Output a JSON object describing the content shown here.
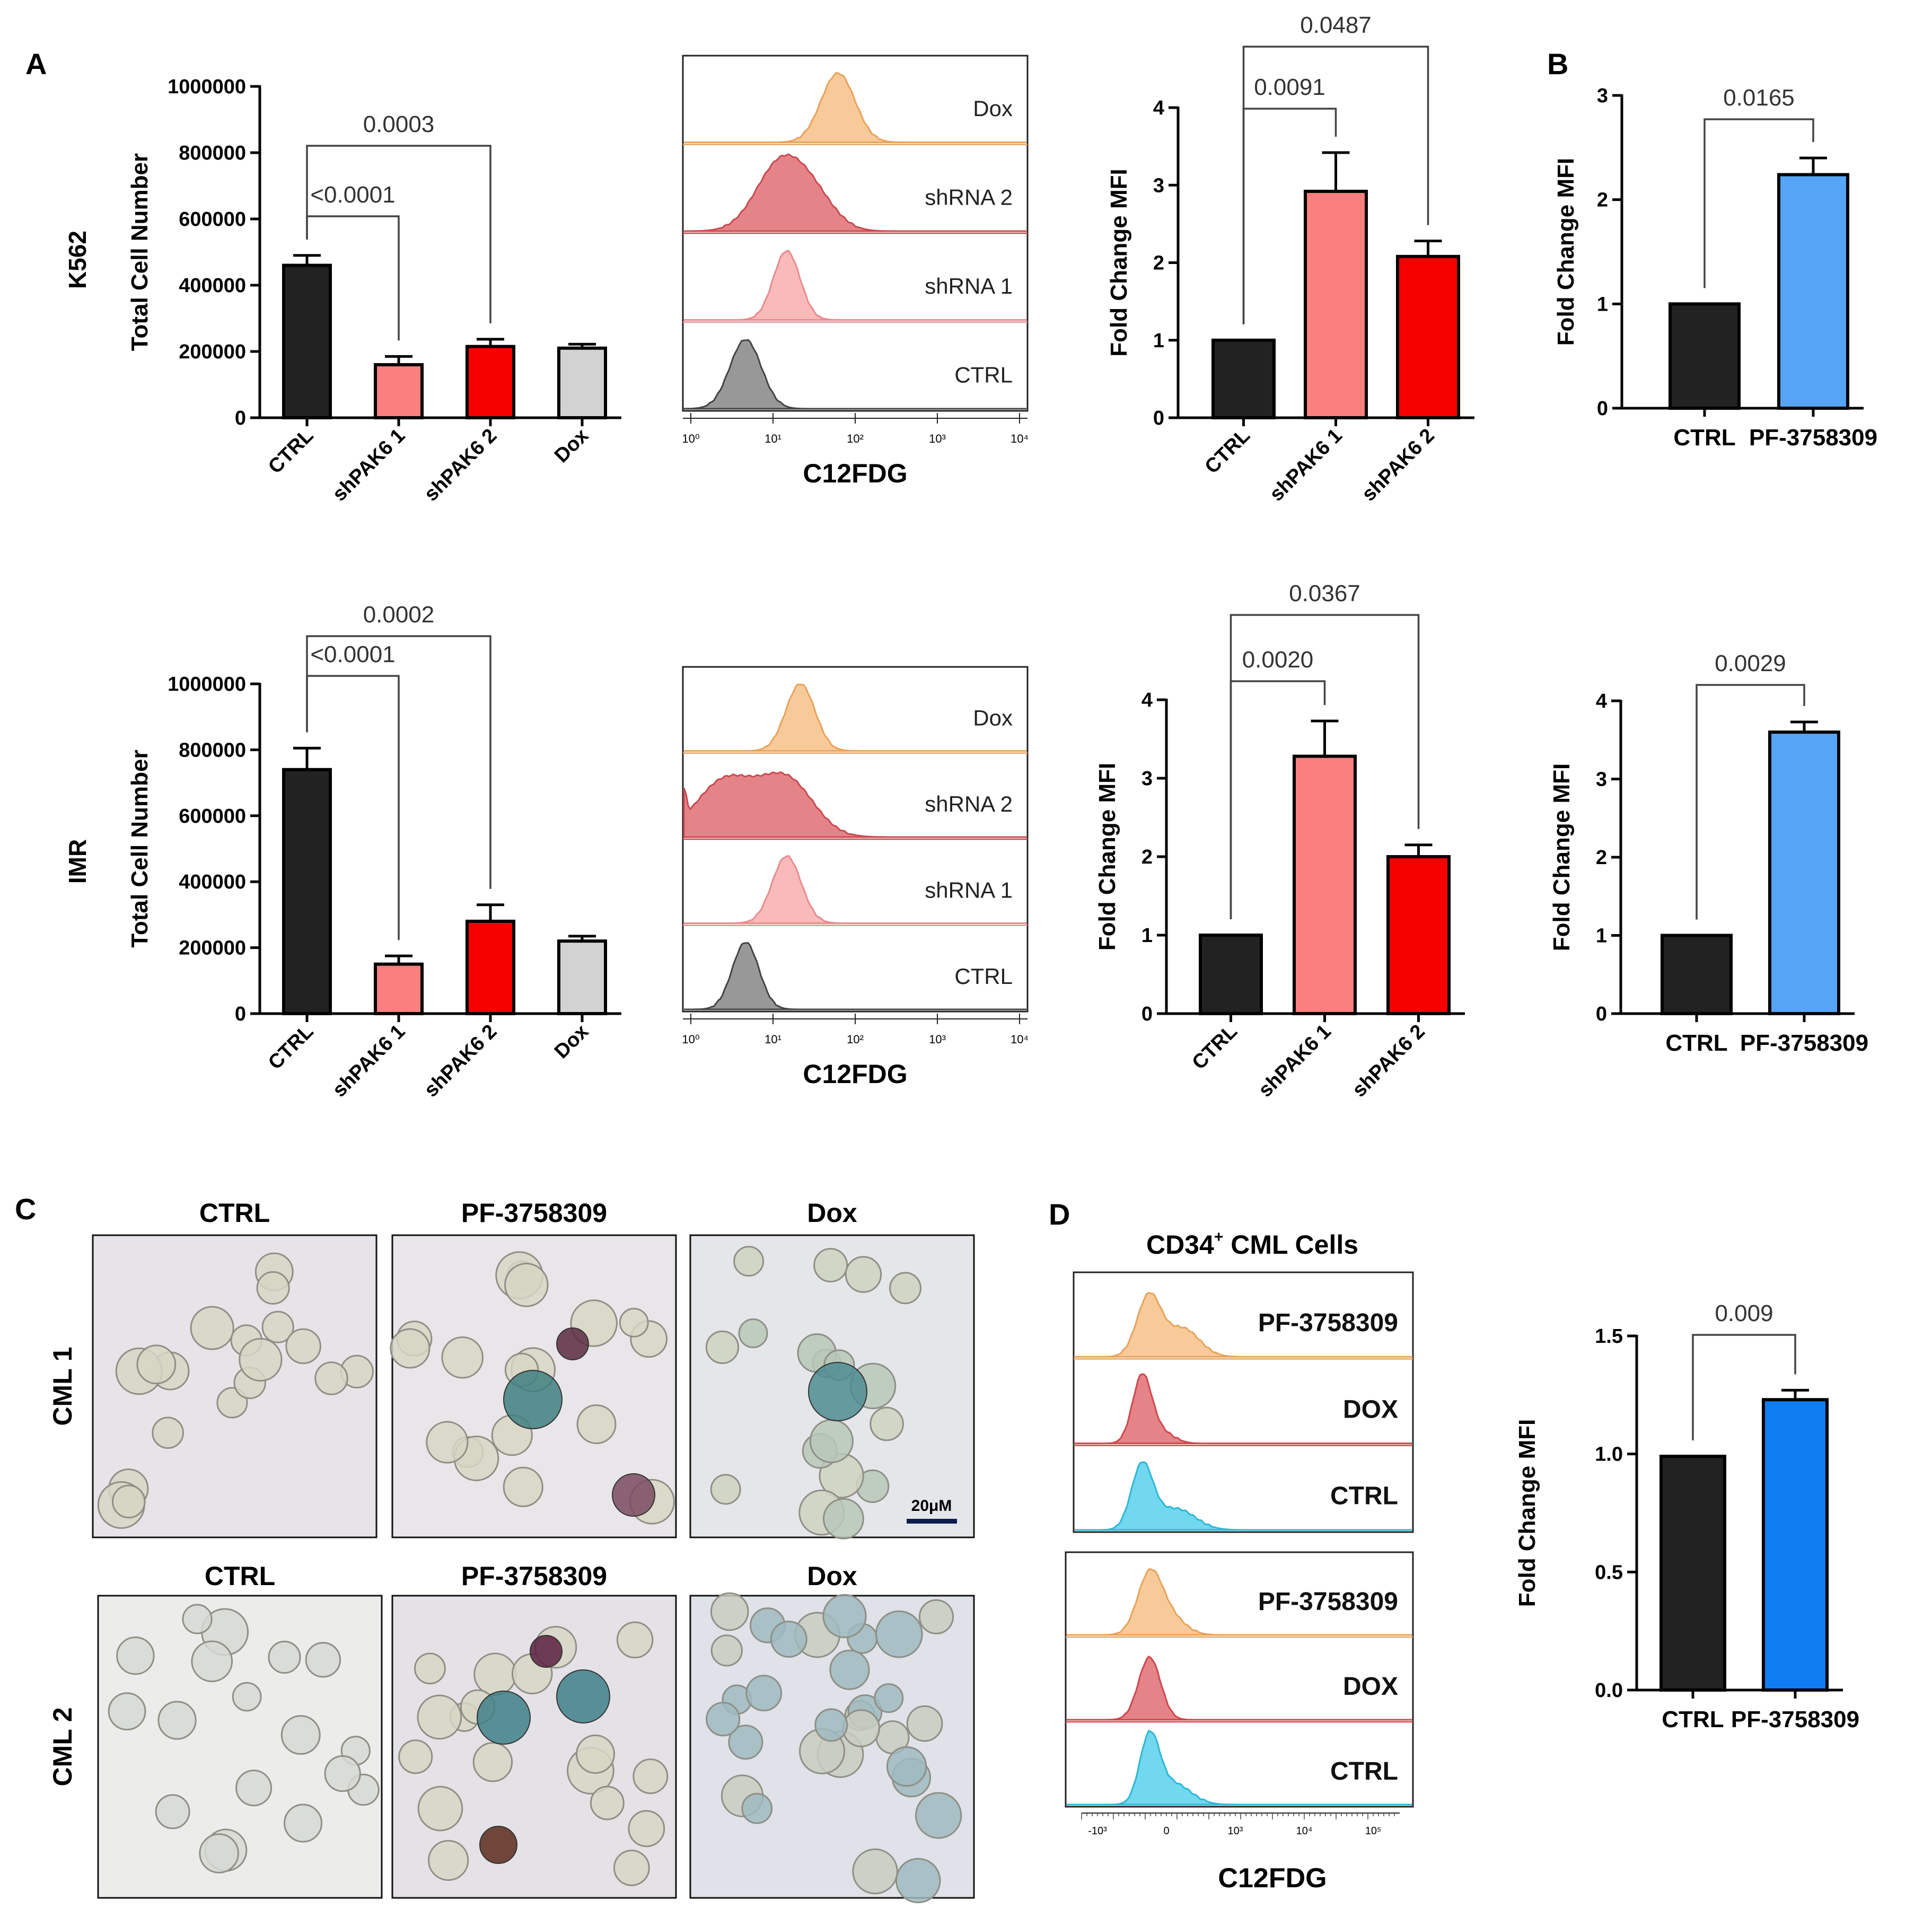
{
  "panel_labels": {
    "a": "A",
    "b": "B",
    "c": "C",
    "d": "D"
  },
  "row_labels": {
    "k562": "K562",
    "imr": "IMR"
  },
  "colors": {
    "black": "#222222",
    "pink": "#fa7f7f",
    "red": "#f70000",
    "grey": "#d2d2d2",
    "blue": "#56a4f5",
    "blue_bright": "#0f7cf2",
    "orange_hist": "#f8c48e",
    "red_hist": "#e2777b",
    "pink_hist": "#f8b2b3",
    "grey_hist": "#8d8d8d",
    "cyan_hist": "#62d4ee"
  },
  "histograms": [
    {
      "xlabel": "C12FDG",
      "tick_labels": [
        "10⁰",
        "10¹",
        "10²",
        "10³",
        "10⁴"
      ],
      "rows": [
        "Dox",
        "shRNA 2",
        "shRNA 1",
        "CTRL"
      ]
    },
    {
      "xlabel": "C12FDG",
      "tick_labels": [
        "10⁰",
        "10¹",
        "10²",
        "10³",
        "10⁴"
      ],
      "rows": [
        "Dox",
        "shRNA 2",
        "shRNA 1",
        "CTRL"
      ]
    },
    {
      "title_main": "CD34",
      "title_sup": "+",
      "title_rest": " CML Cells",
      "xlabel": "C12FDG",
      "top_rows": [
        "PF-3758309",
        "DOX",
        "CTRL"
      ],
      "bottom_rows": [
        "PF-3758309",
        "DOX",
        "CTRL"
      ],
      "tick_labels": [
        "-10³",
        "0",
        "10³",
        "10⁴",
        "10⁵"
      ]
    }
  ],
  "micrographs": {
    "col_titles_top": [
      "CTRL",
      "PF-3758309",
      "Dox"
    ],
    "col_titles_bottom": [
      "CTRL",
      "PF-3758309",
      "Dox"
    ],
    "row_labels": [
      "CML 1",
      "CML 2"
    ],
    "scale_bar": "20μM"
  },
  "chart_data": [
    {
      "id": "k562_count",
      "type": "bar",
      "categories": [
        "CTRL",
        "shPAK6 1",
        "shPAK6 2",
        "Dox"
      ],
      "values": [
        460000,
        160000,
        215000,
        210000
      ],
      "errors": [
        30000,
        25000,
        22000,
        12000
      ],
      "ylabel": "Total Cell Number",
      "ylim": [
        0,
        1000000
      ],
      "yticks": [
        "0",
        "200000",
        "400000",
        "600000",
        "800000",
        "1000000"
      ],
      "yticks_num": [
        0,
        200000,
        400000,
        600000,
        800000,
        1000000
      ],
      "bar_colors": [
        "black",
        "pink",
        "red",
        "grey"
      ],
      "brackets": [
        {
          "from": 0,
          "to": 1,
          "label": "<0.0001"
        },
        {
          "from": 0,
          "to": 2,
          "label": "0.0003"
        }
      ]
    },
    {
      "id": "k562_mfi",
      "type": "bar",
      "categories": [
        "CTRL",
        "shPAK6 1",
        "shPAK6 2"
      ],
      "values": [
        1.0,
        2.92,
        2.08
      ],
      "errors": [
        0,
        0.5,
        0.2
      ],
      "ylabel": "Fold Change MFI",
      "ylim": [
        0,
        4
      ],
      "yticks": [
        "0",
        "1",
        "2",
        "3",
        "4"
      ],
      "yticks_num": [
        0,
        1,
        2,
        3,
        4
      ],
      "bar_colors": [
        "black",
        "pink",
        "red"
      ],
      "brackets": [
        {
          "from": 0,
          "to": 1,
          "label": "0.0091"
        },
        {
          "from": 0,
          "to": 2,
          "label": "0.0487"
        }
      ]
    },
    {
      "id": "k562_pf",
      "type": "bar",
      "categories": [
        "CTRL",
        "PF-3758309"
      ],
      "values": [
        1.0,
        2.24
      ],
      "errors": [
        0,
        0.16
      ],
      "ylabel": "Fold Change MFI",
      "ylim": [
        0,
        3
      ],
      "yticks": [
        "0",
        "1",
        "2",
        "3"
      ],
      "yticks_num": [
        0,
        1,
        2,
        3
      ],
      "bar_colors": [
        "black",
        "blue"
      ],
      "brackets": [
        {
          "from": 0,
          "to": 1,
          "label": "0.0165"
        }
      ]
    },
    {
      "id": "imr_count",
      "type": "bar",
      "categories": [
        "CTRL",
        "shPAK6 1",
        "shPAK6 2",
        "Dox"
      ],
      "values": [
        740000,
        150000,
        280000,
        220000
      ],
      "errors": [
        65000,
        25000,
        50000,
        15000
      ],
      "ylabel": "Total Cell Number",
      "ylim": [
        0,
        1000000
      ],
      "yticks": [
        "0",
        "200000",
        "400000",
        "600000",
        "800000",
        "1000000"
      ],
      "yticks_num": [
        0,
        200000,
        400000,
        600000,
        800000,
        1000000
      ],
      "bar_colors": [
        "black",
        "pink",
        "red",
        "grey"
      ],
      "brackets": [
        {
          "from": 0,
          "to": 1,
          "label": "<0.0001"
        },
        {
          "from": 0,
          "to": 2,
          "label": "0.0002"
        }
      ]
    },
    {
      "id": "imr_mfi",
      "type": "bar",
      "categories": [
        "CTRL",
        "shPAK6 1",
        "shPAK6 2"
      ],
      "values": [
        1.0,
        3.28,
        2.0
      ],
      "errors": [
        0,
        0.45,
        0.15
      ],
      "ylabel": "Fold Change MFI",
      "ylim": [
        0,
        4
      ],
      "yticks": [
        "0",
        "1",
        "2",
        "3",
        "4"
      ],
      "yticks_num": [
        0,
        1,
        2,
        3,
        4
      ],
      "bar_colors": [
        "black",
        "pink",
        "red"
      ],
      "brackets": [
        {
          "from": 0,
          "to": 1,
          "label": "0.0020"
        },
        {
          "from": 0,
          "to": 2,
          "label": "0.0367"
        }
      ]
    },
    {
      "id": "imr_pf",
      "type": "bar",
      "categories": [
        "CTRL",
        "PF-3758309"
      ],
      "values": [
        1.0,
        3.6
      ],
      "errors": [
        0,
        0.13
      ],
      "ylabel": "Fold Change MFI",
      "ylim": [
        0,
        4
      ],
      "yticks": [
        "0",
        "1",
        "2",
        "3",
        "4"
      ],
      "yticks_num": [
        0,
        1,
        2,
        3,
        4
      ],
      "bar_colors": [
        "black",
        "blue"
      ],
      "brackets": [
        {
          "from": 0,
          "to": 1,
          "label": "0.0029"
        }
      ]
    },
    {
      "id": "cml_mfi",
      "type": "bar",
      "categories": [
        "CTRL",
        "PF-3758309"
      ],
      "values": [
        0.99,
        1.23
      ],
      "errors": [
        0,
        0.04
      ],
      "ylabel": "Fold Change MFI",
      "ylim": [
        0,
        1.5
      ],
      "yticks": [
        "0.0",
        "0.5",
        "1.0",
        "1.5"
      ],
      "yticks_num": [
        0,
        0.5,
        1.0,
        1.5
      ],
      "bar_colors": [
        "black",
        "blue_bright"
      ],
      "brackets": [
        {
          "from": 0,
          "to": 1,
          "label": "0.009"
        }
      ]
    }
  ]
}
